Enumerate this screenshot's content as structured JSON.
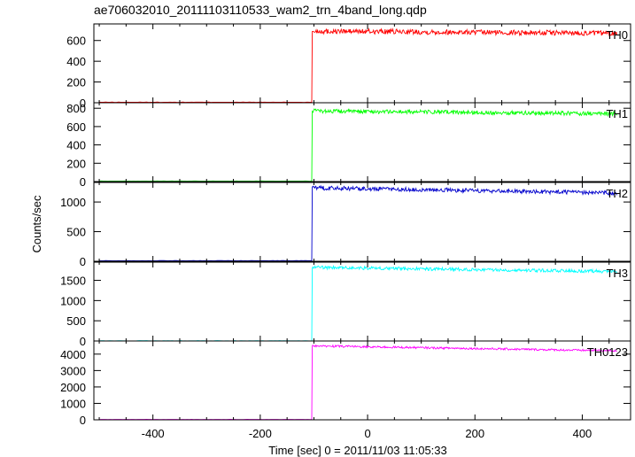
{
  "title": "ae706032010_20111103110533_wam2_trn_4band_long.qdp",
  "ylabel": "Counts/sec",
  "xlabel": "Time [sec] 0 = 2011/11/03 11:05:33",
  "chart_data": {
    "type": "line",
    "title": "ae706032010_20111103110533_wam2_trn_4band_long.qdp",
    "xlabel": "Time [sec] 0 = 2011/11/03 11:05:33",
    "ylabel": "Counts/sec",
    "xlim": [
      -510,
      490
    ],
    "x_ticks": [
      -400,
      -200,
      0,
      200,
      400
    ],
    "trigger_time": -103,
    "data_x_range": [
      -500,
      465
    ],
    "grid": false,
    "panels": [
      {
        "name": "TH0",
        "color": "#ff0000",
        "ylim": [
          0,
          760
        ],
        "y_ticks": [
          0,
          200,
          400,
          600
        ],
        "series": [
          {
            "name": "TH0",
            "x": [
              -500,
              -104,
              -103,
              465
            ],
            "y": [
              5,
              5,
              690,
              670
            ]
          }
        ],
        "noise": 25
      },
      {
        "name": "TH1",
        "color": "#00ff00",
        "ylim": [
          0,
          860
        ],
        "y_ticks": [
          0,
          200,
          400,
          600,
          800
        ],
        "series": [
          {
            "name": "TH1",
            "x": [
              -500,
              -104,
              -103,
              465
            ],
            "y": [
              5,
              5,
              770,
              740
            ]
          }
        ],
        "noise": 22
      },
      {
        "name": "TH2",
        "color": "#0000cc",
        "ylim": [
          0,
          1330
        ],
        "y_ticks": [
          0,
          500,
          1000
        ],
        "series": [
          {
            "name": "TH2",
            "x": [
              -500,
              -104,
              -103,
              465
            ],
            "y": [
              10,
              10,
              1240,
              1150
            ]
          }
        ],
        "noise": 35
      },
      {
        "name": "TH3",
        "color": "#00ffff",
        "ylim": [
          0,
          1950
        ],
        "y_ticks": [
          0,
          500,
          1000,
          1500
        ],
        "series": [
          {
            "name": "TH3",
            "x": [
              -500,
              -104,
              -103,
              465
            ],
            "y": [
              5,
              5,
              1820,
              1720
            ]
          }
        ],
        "noise": 40
      },
      {
        "name": "TH0123",
        "color": "#ff00ff",
        "ylim": [
          0,
          4800
        ],
        "y_ticks": [
          0,
          1000,
          2000,
          3000,
          4000
        ],
        "series": [
          {
            "name": "TH0123",
            "x": [
              -500,
              -104,
              -103,
              465
            ],
            "y": [
              20,
              20,
              4500,
              4200
            ]
          }
        ],
        "noise": 60
      }
    ]
  }
}
